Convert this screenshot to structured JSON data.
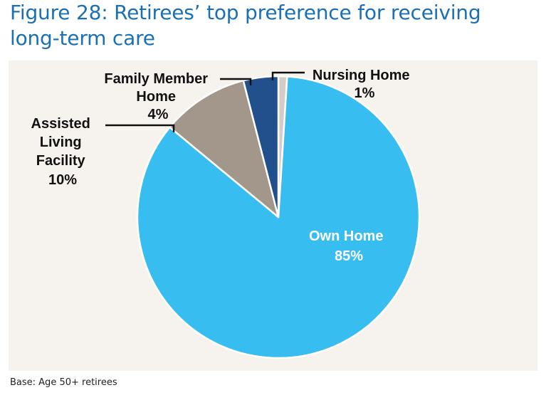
{
  "title_lines": [
    "Figure 28: Retirees’ top preference for receiving",
    "long-term care"
  ],
  "footnote": "Base: Age 50+ retirees",
  "colors": {
    "own_home": "#38bdf0",
    "assisted_living": "#a3968b",
    "family_member": "#22508c",
    "nursing_home": "#d4ccc6",
    "title": "#1a6fb5"
  },
  "chart_data": {
    "type": "pie",
    "title": "Figure 28: Retirees’ top preference for receiving long-term care",
    "slices": [
      {
        "label": "Nursing Home",
        "value": 1,
        "value_label": "1%",
        "label_lines": [
          "Nursing Home",
          "1%"
        ]
      },
      {
        "label": "Own Home",
        "value": 85,
        "value_label": "85%",
        "label_lines": [
          "Own Home",
          "85%"
        ]
      },
      {
        "label": "Assisted Living Facility",
        "value": 10,
        "value_label": "10%",
        "label_lines": [
          "Assisted",
          "Living",
          "Facility",
          "10%"
        ]
      },
      {
        "label": "Family Member Home",
        "value": 4,
        "value_label": "4%",
        "label_lines": [
          "Family Member",
          "Home",
          "4%"
        ]
      }
    ],
    "start": "top",
    "direction": "clockwise"
  }
}
